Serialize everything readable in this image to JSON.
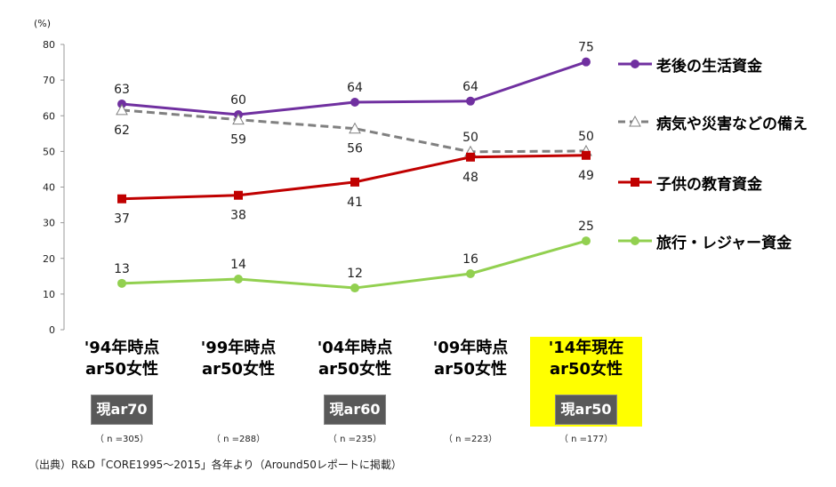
{
  "chart_data": {
    "type": "line",
    "ylabel": "(%)",
    "ylim": [
      0,
      80
    ],
    "yticks": [
      0,
      10,
      20,
      30,
      40,
      50,
      60,
      70,
      80
    ],
    "grid": false,
    "legend_placement": "right",
    "categories": [
      {
        "line1": "'94年時点",
        "line2": "ar50女性",
        "badge": "現ar70",
        "n": "（ n =305）",
        "highlight": false
      },
      {
        "line1": "'99年時点",
        "line2": "ar50女性",
        "badge": "",
        "n": "（ n =288）",
        "highlight": false
      },
      {
        "line1": "'04年時点",
        "line2": "ar50女性",
        "badge": "現ar60",
        "n": "（ n =235）",
        "highlight": false
      },
      {
        "line1": "'09年時点",
        "line2": "ar50女性",
        "badge": "",
        "n": "（ n =223）",
        "highlight": false
      },
      {
        "line1": "'14年現在",
        "line2": "ar50女性",
        "badge": "現ar50",
        "n": "（ n =177）",
        "highlight": true
      }
    ],
    "series": [
      {
        "name": "老後の生活資金",
        "color": "#7030A0",
        "marker": "circle",
        "dash": false,
        "values": [
          63.3,
          60.3,
          63.8,
          64.1,
          75.1
        ],
        "labels": [
          "63",
          "60",
          "64",
          "64",
          "75"
        ]
      },
      {
        "name": "病気や災害などの備え",
        "color": "#808080",
        "marker": "triangle",
        "dash": true,
        "values": [
          61.6,
          58.9,
          56.4,
          49.9,
          50.1
        ],
        "labels": [
          "62",
          "59",
          "56",
          "50",
          "50"
        ]
      },
      {
        "name": "子供の教育資金",
        "color": "#C00000",
        "marker": "square",
        "dash": false,
        "values": [
          36.7,
          37.7,
          41.4,
          48.4,
          48.9
        ],
        "labels": [
          "37",
          "38",
          "41",
          "48",
          "49"
        ]
      },
      {
        "name": "旅行・レジャー資金",
        "color": "#92D050",
        "marker": "circle",
        "dash": false,
        "values": [
          13.0,
          14.2,
          11.7,
          15.7,
          24.9
        ],
        "labels": [
          "13",
          "14",
          "12",
          "16",
          "25"
        ]
      }
    ],
    "highlight_color": "#FFFF00",
    "badge_color": "#595959"
  },
  "source": "（出典）R&D「CORE1995～2015」各年より（Around50レポートに掲載）"
}
